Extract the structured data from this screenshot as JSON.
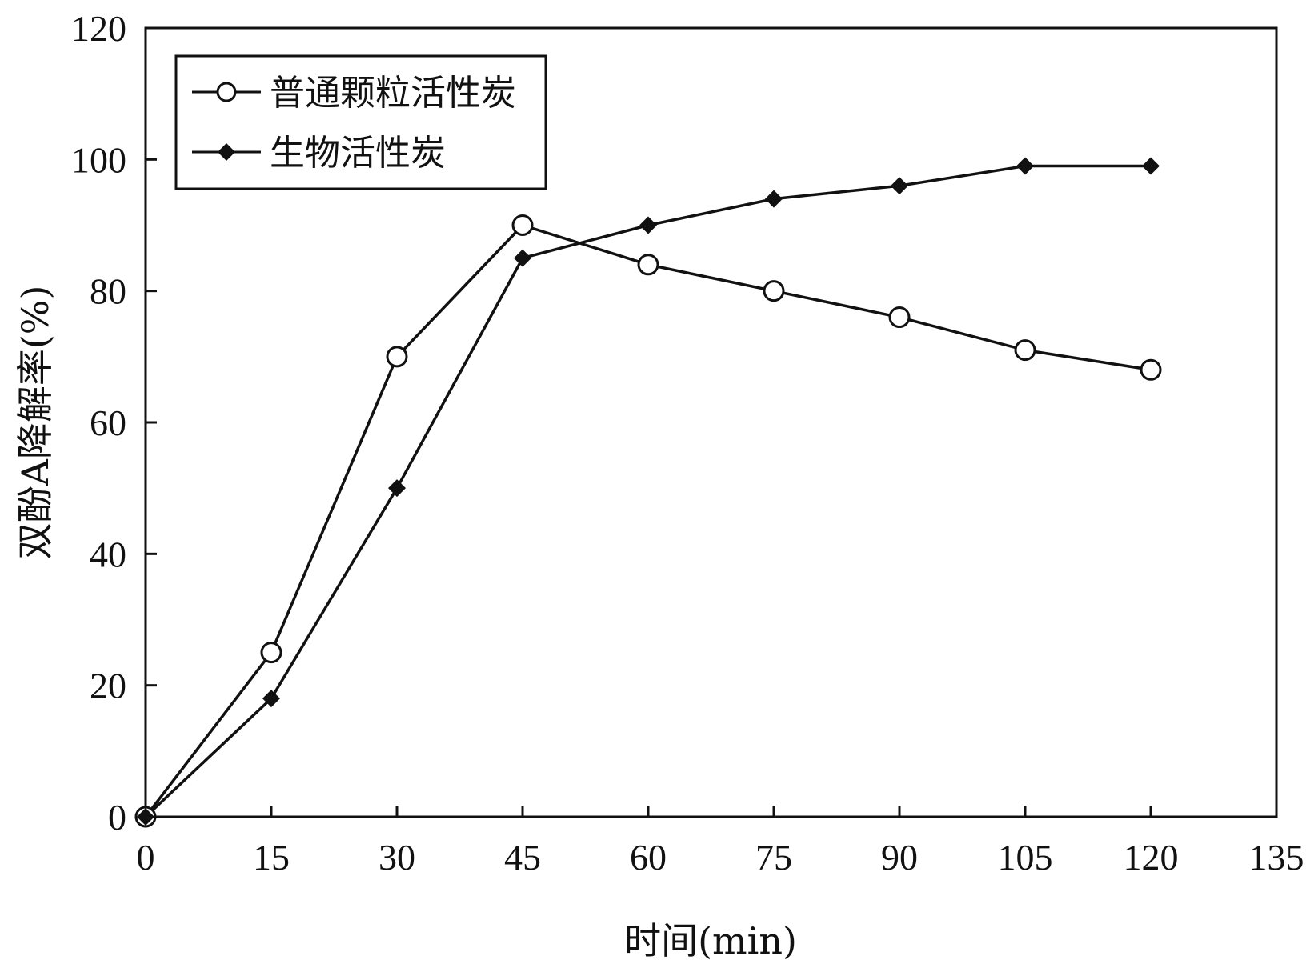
{
  "chart_data": {
    "type": "line",
    "xlabel": "时间(min)",
    "ylabel": "双酚A降解率(%)",
    "xlim": [
      0,
      135
    ],
    "ylim": [
      0,
      120
    ],
    "x_ticks": [
      "0",
      "15",
      "30",
      "45",
      "60",
      "75",
      "90",
      "105",
      "120",
      "135"
    ],
    "y_ticks": [
      "0",
      "20",
      "40",
      "60",
      "80",
      "100",
      "120"
    ],
    "grid": false,
    "legend_position": "top-left",
    "x": [
      0,
      15,
      30,
      45,
      60,
      75,
      90,
      105,
      120
    ],
    "series": [
      {
        "name": "普通颗粒活性炭",
        "marker": "open-circle",
        "values": [
          0,
          25,
          70,
          90,
          84,
          80,
          76,
          71,
          68
        ]
      },
      {
        "name": "生物活性炭",
        "marker": "filled-diamond",
        "values": [
          0,
          18,
          50,
          85,
          90,
          94,
          96,
          99,
          99
        ]
      }
    ],
    "colors": {
      "line": "#111111",
      "background": "#ffffff"
    }
  }
}
